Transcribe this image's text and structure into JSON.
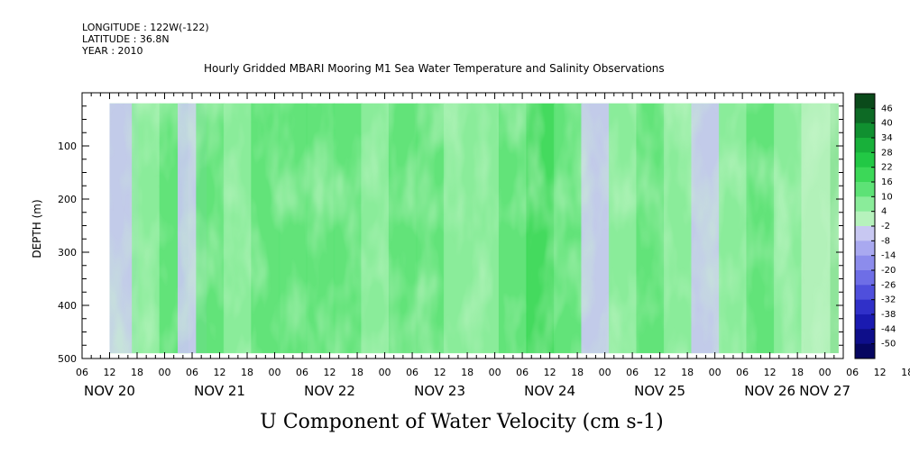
{
  "header": {
    "longitude": "LONGITUDE : 122W(-122)",
    "latitude": "LATITUDE : 36.8N",
    "year": "YEAR : 2010"
  },
  "chart_data": {
    "type": "heatmap",
    "title": "Hourly Gridded MBARI Mooring M1 Sea Water Temperature and Salinity Observations",
    "xlabel": "U Component of Water Velocity (cm s-1)",
    "ylabel": "DEPTH (m)",
    "x_range": [
      "NOV 20 06:00",
      "NOV 27 04:00"
    ],
    "data_range": [
      "NOV 20 12:00",
      "NOV 27 03:00"
    ],
    "depth_range": [
      20,
      490
    ],
    "ylim": [
      500,
      0
    ],
    "y_ticks": [
      100,
      200,
      300,
      400,
      500
    ],
    "hour_ticks": [
      "06",
      "12",
      "18",
      "00",
      "06",
      "12",
      "18",
      "00",
      "06",
      "12",
      "18",
      "00",
      "06",
      "12",
      "18",
      "00",
      "06",
      "12",
      "18",
      "00",
      "06",
      "12",
      "18",
      "00",
      "06",
      "12",
      "18",
      "00",
      "06",
      "12",
      "18",
      "00"
    ],
    "day_labels": [
      "NOV 20",
      "NOV 21",
      "NOV 22",
      "NOV 23",
      "NOV 24",
      "NOV 25",
      "NOV 26",
      "NOV 27"
    ],
    "colorbar_levels": [
      "46",
      "40",
      "34",
      "28",
      "22",
      "16",
      "10",
      "4",
      "-2",
      "-8",
      "-14",
      "-20",
      "-26",
      "-32",
      "-38",
      "-44",
      "-50"
    ],
    "colorbar_colors": [
      "#0a4a1a",
      "#0d6a25",
      "#109030",
      "#18b03a",
      "#22c845",
      "#3cd858",
      "#5de276",
      "#8aec9a",
      "#b6f2bc",
      "#c8c8f2",
      "#a9a9f0",
      "#8c8cec",
      "#6e6ee6",
      "#4f4fdc",
      "#3030c8",
      "#1a1ab0",
      "#0e0e8a",
      "#060660"
    ],
    "stripes": [
      {
        "x": "NOV 20 14:00",
        "u": -8
      },
      {
        "x": "NOV 20 20:00",
        "u": 8
      },
      {
        "x": "NOV 21 02:00",
        "u": 10
      },
      {
        "x": "NOV 21 06:00",
        "u": -6
      },
      {
        "x": "NOV 21 10:00",
        "u": 12
      },
      {
        "x": "NOV 21 16:00",
        "u": 6
      },
      {
        "x": "NOV 21 22:00",
        "u": 10
      },
      {
        "x": "NOV 22 04:00",
        "u": 12
      },
      {
        "x": "NOV 22 10:00",
        "u": 14
      },
      {
        "x": "NOV 22 16:00",
        "u": 12
      },
      {
        "x": "NOV 22 22:00",
        "u": 6
      },
      {
        "x": "NOV 23 04:00",
        "u": 10
      },
      {
        "x": "NOV 23 10:00",
        "u": 14
      },
      {
        "x": "NOV 23 16:00",
        "u": 6
      },
      {
        "x": "NOV 23 22:00",
        "u": 4
      },
      {
        "x": "NOV 24 04:00",
        "u": 12
      },
      {
        "x": "NOV 24 10:00",
        "u": 16
      },
      {
        "x": "NOV 24 16:00",
        "u": 10
      },
      {
        "x": "NOV 24 22:00",
        "u": -4
      },
      {
        "x": "NOV 25 04:00",
        "u": 8
      },
      {
        "x": "NOV 25 10:00",
        "u": 12
      },
      {
        "x": "NOV 25 16:00",
        "u": 4
      },
      {
        "x": "NOV 25 22:00",
        "u": -6
      },
      {
        "x": "NOV 26 04:00",
        "u": 6
      },
      {
        "x": "NOV 26 10:00",
        "u": 10
      },
      {
        "x": "NOV 26 16:00",
        "u": 8
      },
      {
        "x": "NOV 26 22:00",
        "u": 2
      }
    ],
    "grid": false,
    "legend": "right colorbar"
  }
}
